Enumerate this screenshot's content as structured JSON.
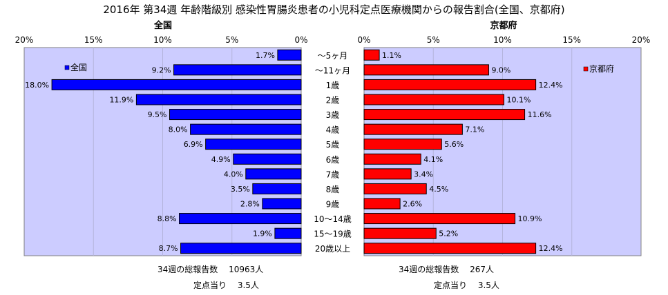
{
  "title": "2016年 第34週 年齢階級別 感染性胃腸炎患者の小児科定点医療機関からの報告割合(全国、京都府)",
  "chart_data": {
    "type": "bar",
    "categories": [
      "～5ヶ月",
      "～11ヶ月",
      "1歳",
      "2歳",
      "3歳",
      "4歳",
      "5歳",
      "6歳",
      "7歳",
      "8歳",
      "9歳",
      "10～14歳",
      "15～19歳",
      "20歳以上"
    ],
    "series": [
      {
        "name": "全国",
        "color": "#0000ff",
        "values": [
          1.7,
          9.2,
          18.0,
          11.9,
          9.5,
          8.0,
          6.9,
          4.9,
          4.0,
          3.5,
          2.8,
          8.8,
          1.9,
          8.7
        ],
        "labels": [
          "1.7%",
          "9.2%",
          "18.0%",
          "11.9%",
          "9.5%",
          "8.0%",
          "6.9%",
          "4.9%",
          "4.0%",
          "3.5%",
          "2.8%",
          "8.8%",
          "1.9%",
          "8.7%"
        ]
      },
      {
        "name": "京都府",
        "color": "#ff0000",
        "values": [
          1.1,
          9.0,
          12.4,
          10.1,
          11.6,
          7.1,
          5.6,
          4.1,
          3.4,
          4.5,
          2.6,
          10.9,
          5.2,
          12.4
        ],
        "labels": [
          "1.1%",
          "9.0%",
          "12.4%",
          "10.1%",
          "11.6%",
          "7.1%",
          "5.6%",
          "4.1%",
          "3.4%",
          "4.5%",
          "2.6%",
          "10.9%",
          "5.2%",
          "12.4%"
        ]
      }
    ],
    "axis_ticks": [
      0,
      5,
      10,
      15,
      20
    ],
    "axis_tick_labels_left": [
      "0%",
      "5%",
      "10%",
      "15%",
      "20%"
    ],
    "axis_tick_labels_right": [
      "0%",
      "5%",
      "10%",
      "15%",
      "20%"
    ],
    "xlim": [
      0,
      20
    ],
    "panel_titles": [
      "全国",
      "京都府"
    ],
    "legend_left": "全国",
    "legend_right": "京都府",
    "grid": true
  },
  "footer": {
    "left_total": "34週の総報告数　 10963人",
    "left_per": "定点当り　 3.5人",
    "right_total": "34週の総報告数　 267人",
    "right_per": "定点当り　 3.5人"
  },
  "colors": {
    "plot_bg": "#ccccff",
    "grid": "#b4b4dc"
  }
}
